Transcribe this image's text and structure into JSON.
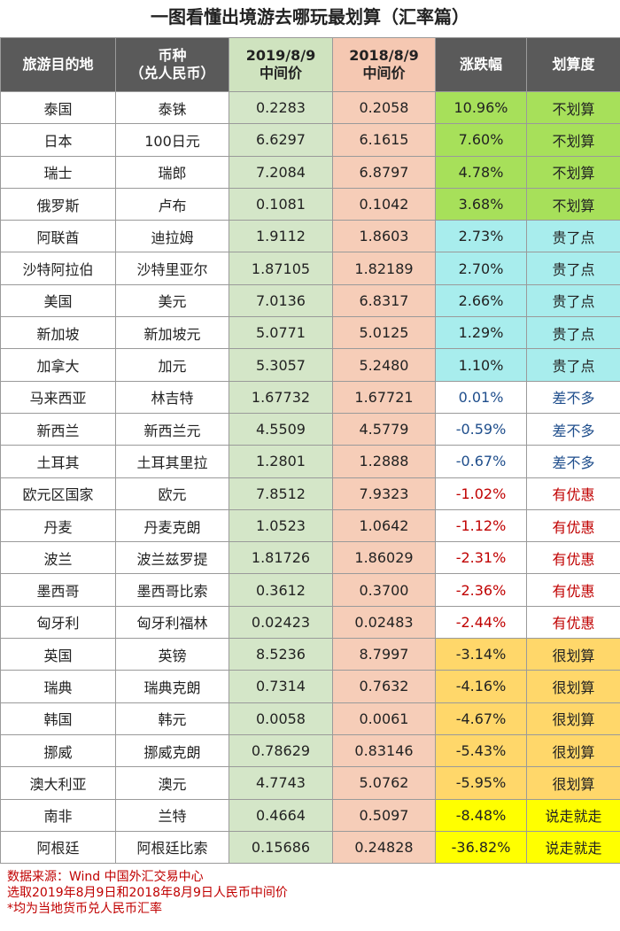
{
  "title": "一图看懂出境游去哪玩最划算（汇率篇）",
  "headers": {
    "destination": "旅游目的地",
    "currency_1": "币种",
    "currency_2": "（兑人民币）",
    "rate2019_1": "2019/8/9",
    "rate2019_2": "中间价",
    "rate2018_1": "2018/8/9",
    "rate2018_2": "中间价",
    "change": "涨跌幅",
    "worth": "划算度"
  },
  "rows": [
    {
      "country": "泰国",
      "currency": "泰铢",
      "r2019": "0.2283",
      "r2018": "0.2058",
      "change": "10.96%",
      "worth": "不划算",
      "tier": "noworth"
    },
    {
      "country": "日本",
      "currency": "100日元",
      "r2019": "6.6297",
      "r2018": "6.1615",
      "change": "7.60%",
      "worth": "不划算",
      "tier": "noworth"
    },
    {
      "country": "瑞士",
      "currency": "瑞郎",
      "r2019": "7.2084",
      "r2018": "6.8797",
      "change": "4.78%",
      "worth": "不划算",
      "tier": "noworth"
    },
    {
      "country": "俄罗斯",
      "currency": "卢布",
      "r2019": "0.1081",
      "r2018": "0.1042",
      "change": "3.68%",
      "worth": "不划算",
      "tier": "noworth"
    },
    {
      "country": "阿联酋",
      "currency": "迪拉姆",
      "r2019": "1.9112",
      "r2018": "1.8603",
      "change": "2.73%",
      "worth": "贵了点",
      "tier": "pricey"
    },
    {
      "country": "沙特阿拉伯",
      "currency": "沙特里亚尔",
      "r2019": "1.87105",
      "r2018": "1.82189",
      "change": "2.70%",
      "worth": "贵了点",
      "tier": "pricey"
    },
    {
      "country": "美国",
      "currency": "美元",
      "r2019": "7.0136",
      "r2018": "6.8317",
      "change": "2.66%",
      "worth": "贵了点",
      "tier": "pricey"
    },
    {
      "country": "新加坡",
      "currency": "新加坡元",
      "r2019": "5.0771",
      "r2018": "5.0125",
      "change": "1.29%",
      "worth": "贵了点",
      "tier": "pricey"
    },
    {
      "country": "加拿大",
      "currency": "加元",
      "r2019": "5.3057",
      "r2018": "5.2480",
      "change": "1.10%",
      "worth": "贵了点",
      "tier": "pricey"
    },
    {
      "country": "马来西亚",
      "currency": "林吉特",
      "r2019": "1.67732",
      "r2018": "1.67721",
      "change": "0.01%",
      "worth": "差不多",
      "tier": "same"
    },
    {
      "country": "新西兰",
      "currency": "新西兰元",
      "r2019": "4.5509",
      "r2018": "4.5779",
      "change": "-0.59%",
      "worth": "差不多",
      "tier": "same"
    },
    {
      "country": "土耳其",
      "currency": "土耳其里拉",
      "r2019": "1.2801",
      "r2018": "1.2888",
      "change": "-0.67%",
      "worth": "差不多",
      "tier": "same"
    },
    {
      "country": "欧元区国家",
      "currency": "欧元",
      "r2019": "7.8512",
      "r2018": "7.9323",
      "change": "-1.02%",
      "worth": "有优惠",
      "tier": "deal"
    },
    {
      "country": "丹麦",
      "currency": "丹麦克朗",
      "r2019": "1.0523",
      "r2018": "1.0642",
      "change": "-1.12%",
      "worth": "有优惠",
      "tier": "deal"
    },
    {
      "country": "波兰",
      "currency": "波兰兹罗提",
      "r2019": "1.81726",
      "r2018": "1.86029",
      "change": "-2.31%",
      "worth": "有优惠",
      "tier": "deal"
    },
    {
      "country": "墨西哥",
      "currency": "墨西哥比索",
      "r2019": "0.3612",
      "r2018": "0.3700",
      "change": "-2.36%",
      "worth": "有优惠",
      "tier": "deal"
    },
    {
      "country": "匈牙利",
      "currency": "匈牙利福林",
      "r2019": "0.02423",
      "r2018": "0.02483",
      "change": "-2.44%",
      "worth": "有优惠",
      "tier": "deal"
    },
    {
      "country": "英国",
      "currency": "英镑",
      "r2019": "8.5236",
      "r2018": "8.7997",
      "change": "-3.14%",
      "worth": "很划算",
      "tier": "great"
    },
    {
      "country": "瑞典",
      "currency": "瑞典克朗",
      "r2019": "0.7314",
      "r2018": "0.7632",
      "change": "-4.16%",
      "worth": "很划算",
      "tier": "great"
    },
    {
      "country": "韩国",
      "currency": "韩元",
      "r2019": "0.0058",
      "r2018": "0.0061",
      "change": "-4.67%",
      "worth": "很划算",
      "tier": "great"
    },
    {
      "country": "挪威",
      "currency": "挪威克朗",
      "r2019": "0.78629",
      "r2018": "0.83146",
      "change": "-5.43%",
      "worth": "很划算",
      "tier": "great"
    },
    {
      "country": "澳大利亚",
      "currency": "澳元",
      "r2019": "4.7743",
      "r2018": "5.0762",
      "change": "-5.95%",
      "worth": "很划算",
      "tier": "great"
    },
    {
      "country": "南非",
      "currency": "兰特",
      "r2019": "0.4664",
      "r2018": "0.5097",
      "change": "-8.48%",
      "worth": "说走就走",
      "tier": "go"
    },
    {
      "country": "阿根廷",
      "currency": "阿根廷比索",
      "r2019": "0.15686",
      "r2018": "0.24828",
      "change": "-36.82%",
      "worth": "说走就走",
      "tier": "go"
    }
  ],
  "footer": [
    "数据来源：Wind 中国外汇交易中心",
    "选取2019年8月9日和2018年8月9日人民币中间价",
    "*均为当地货币兑人民币汇率"
  ],
  "colors": {
    "header_dark": "#5a5a5a",
    "col2019": "#d4e6c8",
    "col2018": "#f6cdb8",
    "noworth": "#a7e05a",
    "pricey": "#a8eded",
    "same_text": "#1f4e8c",
    "deal_text": "#c00000",
    "great": "#ffd76a",
    "go": "#ffff00"
  }
}
